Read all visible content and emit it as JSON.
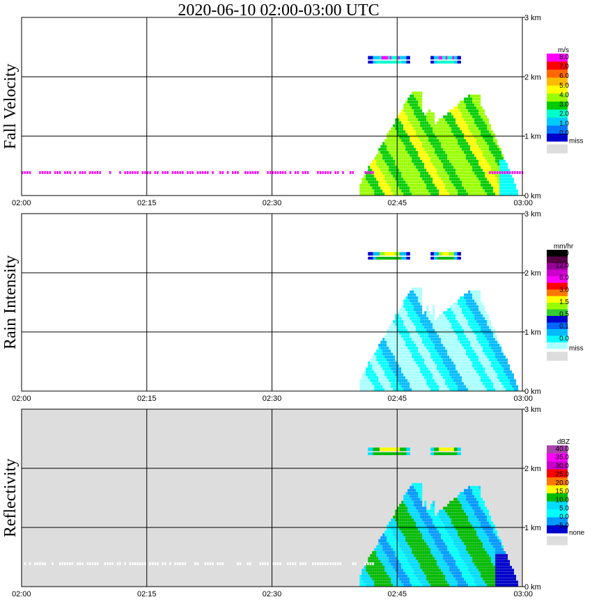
{
  "title": "2020-06-10   02:00-03:00 UTC",
  "x_ticks": [
    "02:00",
    "02:15",
    "02:30",
    "02:45",
    "03:00"
  ],
  "y_ticks": [
    "0 km",
    "1 km",
    "2 km",
    "3 km"
  ],
  "chart_data": [
    {
      "type": "heatmap",
      "panel": "Fall Velocity",
      "ylabel": "Fall Velocity",
      "legend_unit": "m/s",
      "legend_labels": [
        "8.0",
        "7.0",
        "6.0",
        "5.0",
        "4.0",
        "3.0",
        "2.0",
        "1.0",
        "0.0"
      ],
      "legend_colors": [
        "#ff00ff",
        "#ff0000",
        "#ff6600",
        "#ffbb00",
        "#ffff00",
        "#99ff00",
        "#00cc00",
        "#00ffcc",
        "#00ccff",
        "#0077ff",
        "#0000cc"
      ],
      "missing_label": "miss",
      "missing_color": "#dddddd",
      "xlim": [
        "02:00",
        "03:00"
      ],
      "ylim": [
        0,
        3.0
      ],
      "grid": true
    },
    {
      "type": "heatmap",
      "panel": "Rain Intensity",
      "ylabel": "Rain Intensity",
      "legend_unit": "mm/hr",
      "legend_labels": [
        "48.0",
        "12.0",
        "6.0",
        "3.0",
        "1.5",
        "0.5",
        "0.1",
        "0.0"
      ],
      "legend_colors": [
        "#000000",
        "#550044",
        "#990099",
        "#cc00cc",
        "#ff00ff",
        "#ff0000",
        "#ff7700",
        "#ffff00",
        "#99ff00",
        "#33cc33",
        "#0000cc",
        "#0066ff",
        "#00bbff",
        "#00ffff",
        "#aaffff"
      ],
      "missing_label": "miss",
      "missing_color": "#dddddd",
      "xlim": [
        "02:00",
        "03:00"
      ],
      "ylim": [
        0,
        3.0
      ],
      "grid": true
    },
    {
      "type": "heatmap",
      "panel": "Reflectivity",
      "ylabel": "Reflectivity",
      "legend_unit": "dBZ",
      "legend_labels": [
        "40.0",
        "35.0",
        "30.0",
        "25.0",
        "20.0",
        "15.0",
        "10.0",
        "5.0",
        "0.0",
        "−5.0"
      ],
      "legend_colors": [
        "#aa44aa",
        "#ff00ff",
        "#cc00cc",
        "#ff0000",
        "#ff7700",
        "#ffff00",
        "#00bb00",
        "#00ddff",
        "#00ffff",
        "#0099ff",
        "#0000cc"
      ],
      "missing_label": "none",
      "missing_color": "#dddddd",
      "xlim": [
        "02:00",
        "03:00"
      ],
      "ylim": [
        0,
        3.0
      ],
      "grid": true
    }
  ]
}
